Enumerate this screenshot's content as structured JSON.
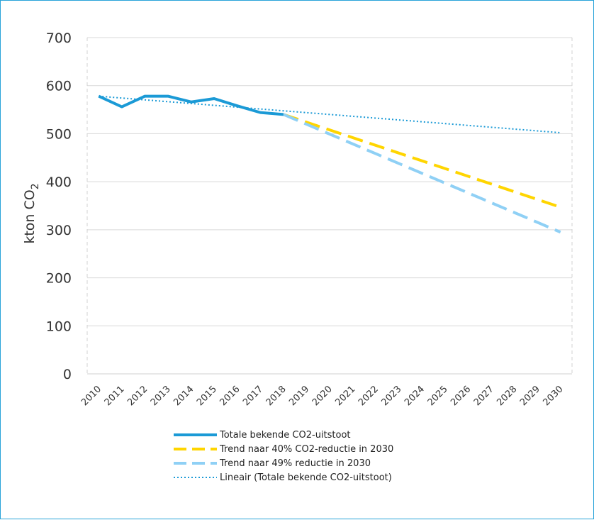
{
  "chart_data": {
    "type": "line",
    "title": "",
    "xlabel": "",
    "ylabel": "kton CO2",
    "ylabel_main": "kton CO",
    "ylabel_sub": "2",
    "ylim": [
      0,
      700
    ],
    "yticks": [
      "0",
      "100",
      "200",
      "300",
      "400",
      "500",
      "600",
      "700"
    ],
    "categories": [
      "2010",
      "2011",
      "2012",
      "2013",
      "2014",
      "2015",
      "2016",
      "2017",
      "2018",
      "2019",
      "2020",
      "2021",
      "2022",
      "2023",
      "2024",
      "2025",
      "2026",
      "2027",
      "2028",
      "2029",
      "2030"
    ],
    "grid": "horizontal",
    "legend_position": "bottom",
    "series": [
      {
        "name": "Totale bekende CO2-uitstoot",
        "style": "solid",
        "color": "#1b9ad6",
        "x": [
          "2010",
          "2011",
          "2012",
          "2013",
          "2014",
          "2015",
          "2016",
          "2017",
          "2018"
        ],
        "values": [
          578,
          556,
          578,
          578,
          566,
          573,
          558,
          544,
          540
        ]
      },
      {
        "name": "Trend naar 40% CO2-reductie in 2030",
        "style": "dashed",
        "color": "#ffd500",
        "x": [
          "2018",
          "2030"
        ],
        "values": [
          540,
          347
        ]
      },
      {
        "name": "Trend naar 49% reductie in 2030",
        "style": "dashed",
        "color": "#8fd0f5",
        "x": [
          "2018",
          "2030"
        ],
        "values": [
          540,
          295
        ]
      },
      {
        "name": "Lineair (Totale bekende CO2-uitstoot)",
        "style": "dotted",
        "color": "#1b9ad6",
        "x": [
          "2010",
          "2030"
        ],
        "values": [
          578,
          502
        ]
      }
    ]
  }
}
